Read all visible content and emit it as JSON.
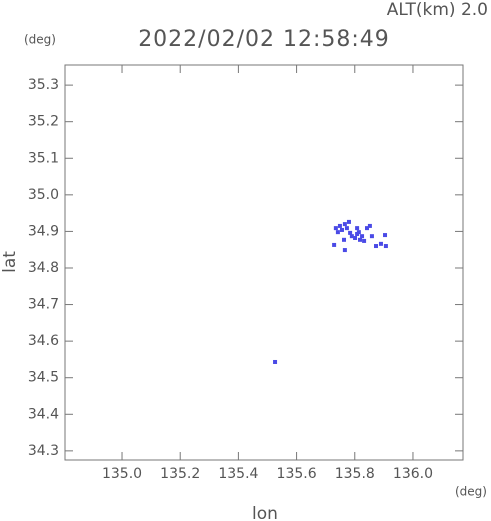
{
  "chart_data": {
    "type": "scatter",
    "title": "2022/02/02 12:58:49",
    "subtitle": "ALT(km) 2.0",
    "x_label": "lon",
    "y_label": "lat",
    "x_unit": "(deg)",
    "y_unit": "(deg)",
    "color": "#4a4ae6",
    "xlim": [
      134.804,
      136.172
    ],
    "ylim": [
      34.275,
      35.355
    ],
    "xticks": [
      {
        "value": 135.0,
        "label": "135.0"
      },
      135.2,
      135.4,
      135.6,
      135.8,
      {
        "value": 136.0,
        "label": "136.0"
      }
    ],
    "yticks": [
      34.3,
      34.4,
      34.5,
      34.6,
      34.7,
      34.8,
      34.9,
      {
        "value": 35.0,
        "label": "35.0"
      },
      35.1,
      35.2,
      35.3
    ],
    "x": [
      135.735,
      135.742,
      135.749,
      135.756,
      135.766,
      135.773,
      135.78,
      135.784,
      135.79,
      135.801,
      135.808,
      135.814,
      135.818,
      135.825,
      135.832,
      135.842,
      135.852,
      135.859,
      135.873,
      135.89,
      135.907,
      135.904,
      135.763,
      135.766,
      135.729,
      135.808,
      135.526
    ],
    "y": [
      34.909,
      34.898,
      34.915,
      34.904,
      34.92,
      34.909,
      34.926,
      34.896,
      34.887,
      34.882,
      34.893,
      34.898,
      34.877,
      34.887,
      34.874,
      34.909,
      34.915,
      34.887,
      34.86,
      34.866,
      34.86,
      34.89,
      34.877,
      34.849,
      34.863,
      34.909,
      34.543
    ]
  }
}
